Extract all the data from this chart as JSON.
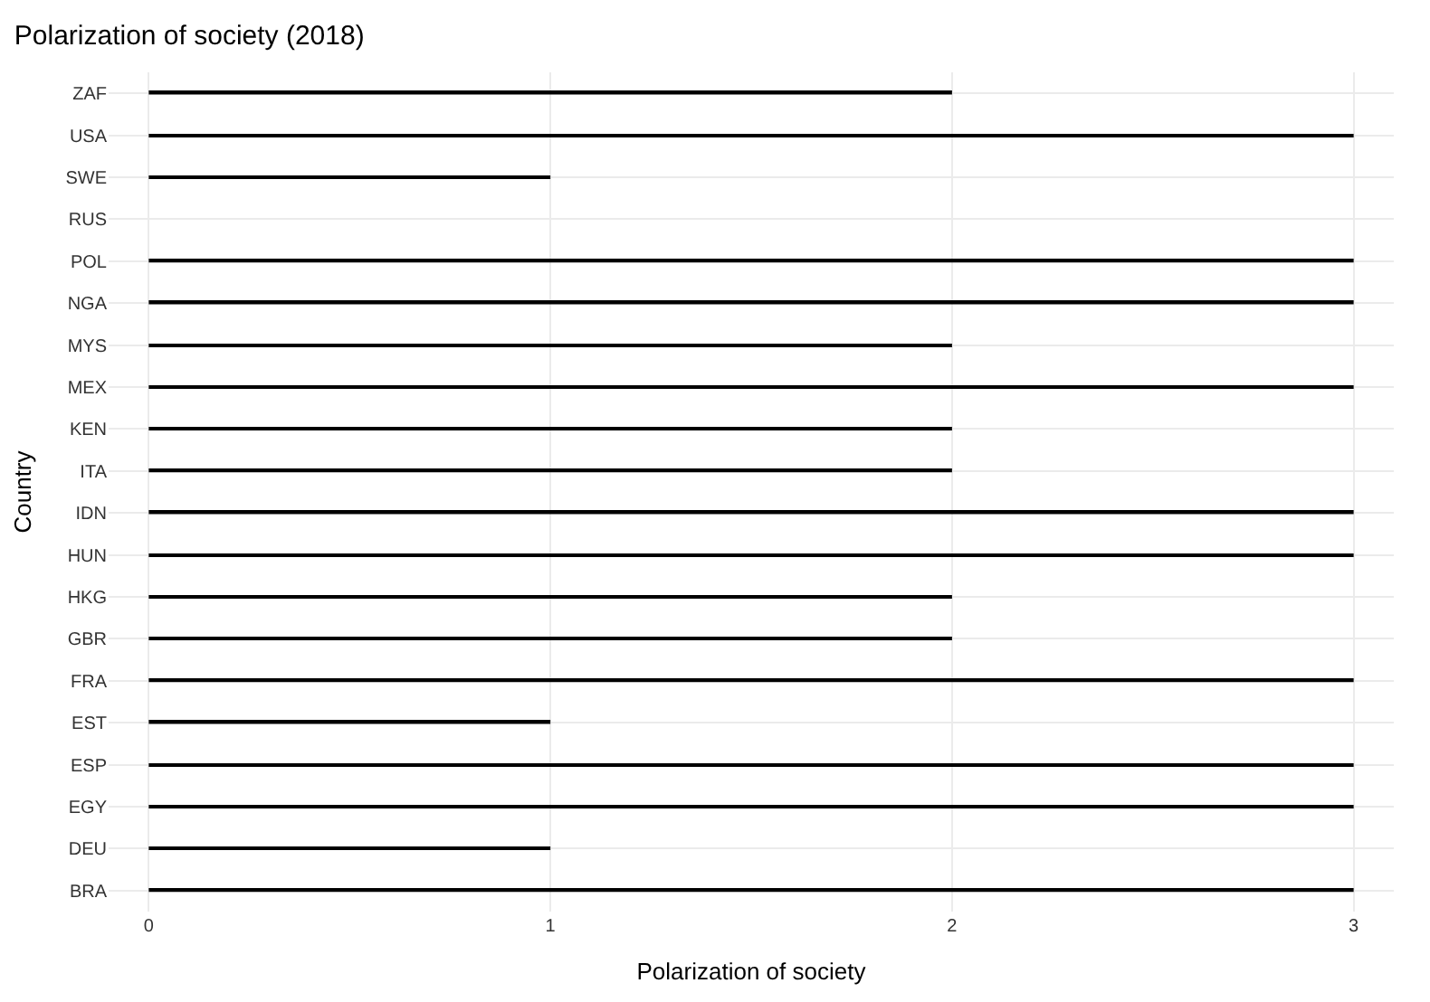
{
  "chart_data": {
    "type": "bar",
    "orientation": "horizontal",
    "title": "Polarization of society (2018)",
    "xlabel": "Polarization of society",
    "ylabel": "Country",
    "categories": [
      "ZAF",
      "USA",
      "SWE",
      "RUS",
      "POL",
      "NGA",
      "MYS",
      "MEX",
      "KEN",
      "ITA",
      "IDN",
      "HUN",
      "HKG",
      "GBR",
      "FRA",
      "EST",
      "ESP",
      "EGY",
      "DEU",
      "BRA"
    ],
    "values": [
      2,
      3,
      1,
      0,
      3,
      3,
      2,
      3,
      2,
      2,
      3,
      3,
      2,
      2,
      3,
      1,
      3,
      3,
      1,
      3
    ],
    "color": "#000000",
    "xlim": [
      -0.1,
      3.1
    ],
    "xticks": [
      0,
      1,
      2,
      3
    ],
    "grid": true,
    "legend": false
  }
}
